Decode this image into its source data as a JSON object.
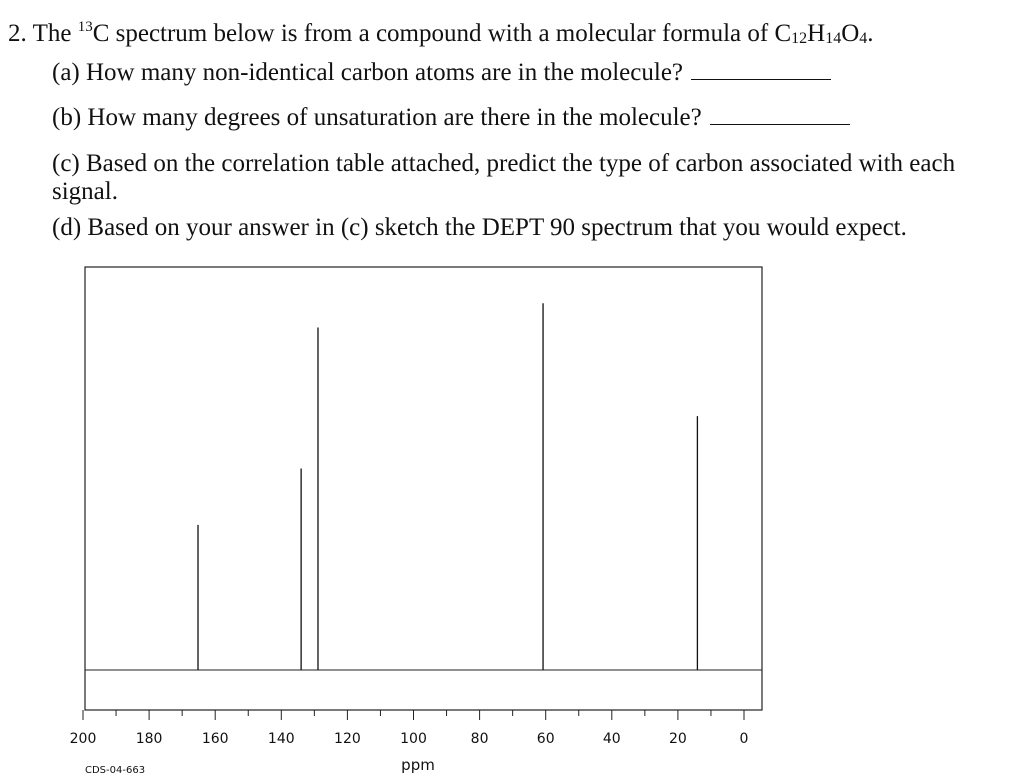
{
  "question": {
    "number": "2.",
    "intro": [
      "The ",
      "13",
      "C spectrum below is from a compound with a molecular formula of C",
      "12",
      "H",
      "14",
      "O",
      "4",
      "."
    ],
    "parts": [
      "(a) How many non-identical carbon atoms are in the molecule?",
      "(b) How many degrees of unsaturation are there in the molecule?",
      "(c) Based on the correlation table attached, predict the type of carbon associated with each signal.",
      "(d) Based on your answer in (c) sketch the DEPT 90 spectrum that you would expect."
    ]
  },
  "spectrum": {
    "type": "stick",
    "x_label": "ppm",
    "code": "CDS-04-663",
    "xlim": [
      200,
      0
    ],
    "xticks": [
      200,
      180,
      160,
      140,
      120,
      100,
      80,
      60,
      40,
      20,
      0
    ],
    "minor_xticks": [
      190,
      170,
      150,
      130,
      110,
      90,
      70,
      50,
      30,
      10
    ],
    "ylim": [
      0,
      100
    ],
    "peaks": {
      "x": [
        165.2,
        134,
        128.9,
        60.8,
        14.1
      ],
      "values": [
        36,
        50,
        85,
        91,
        63
      ]
    }
  }
}
